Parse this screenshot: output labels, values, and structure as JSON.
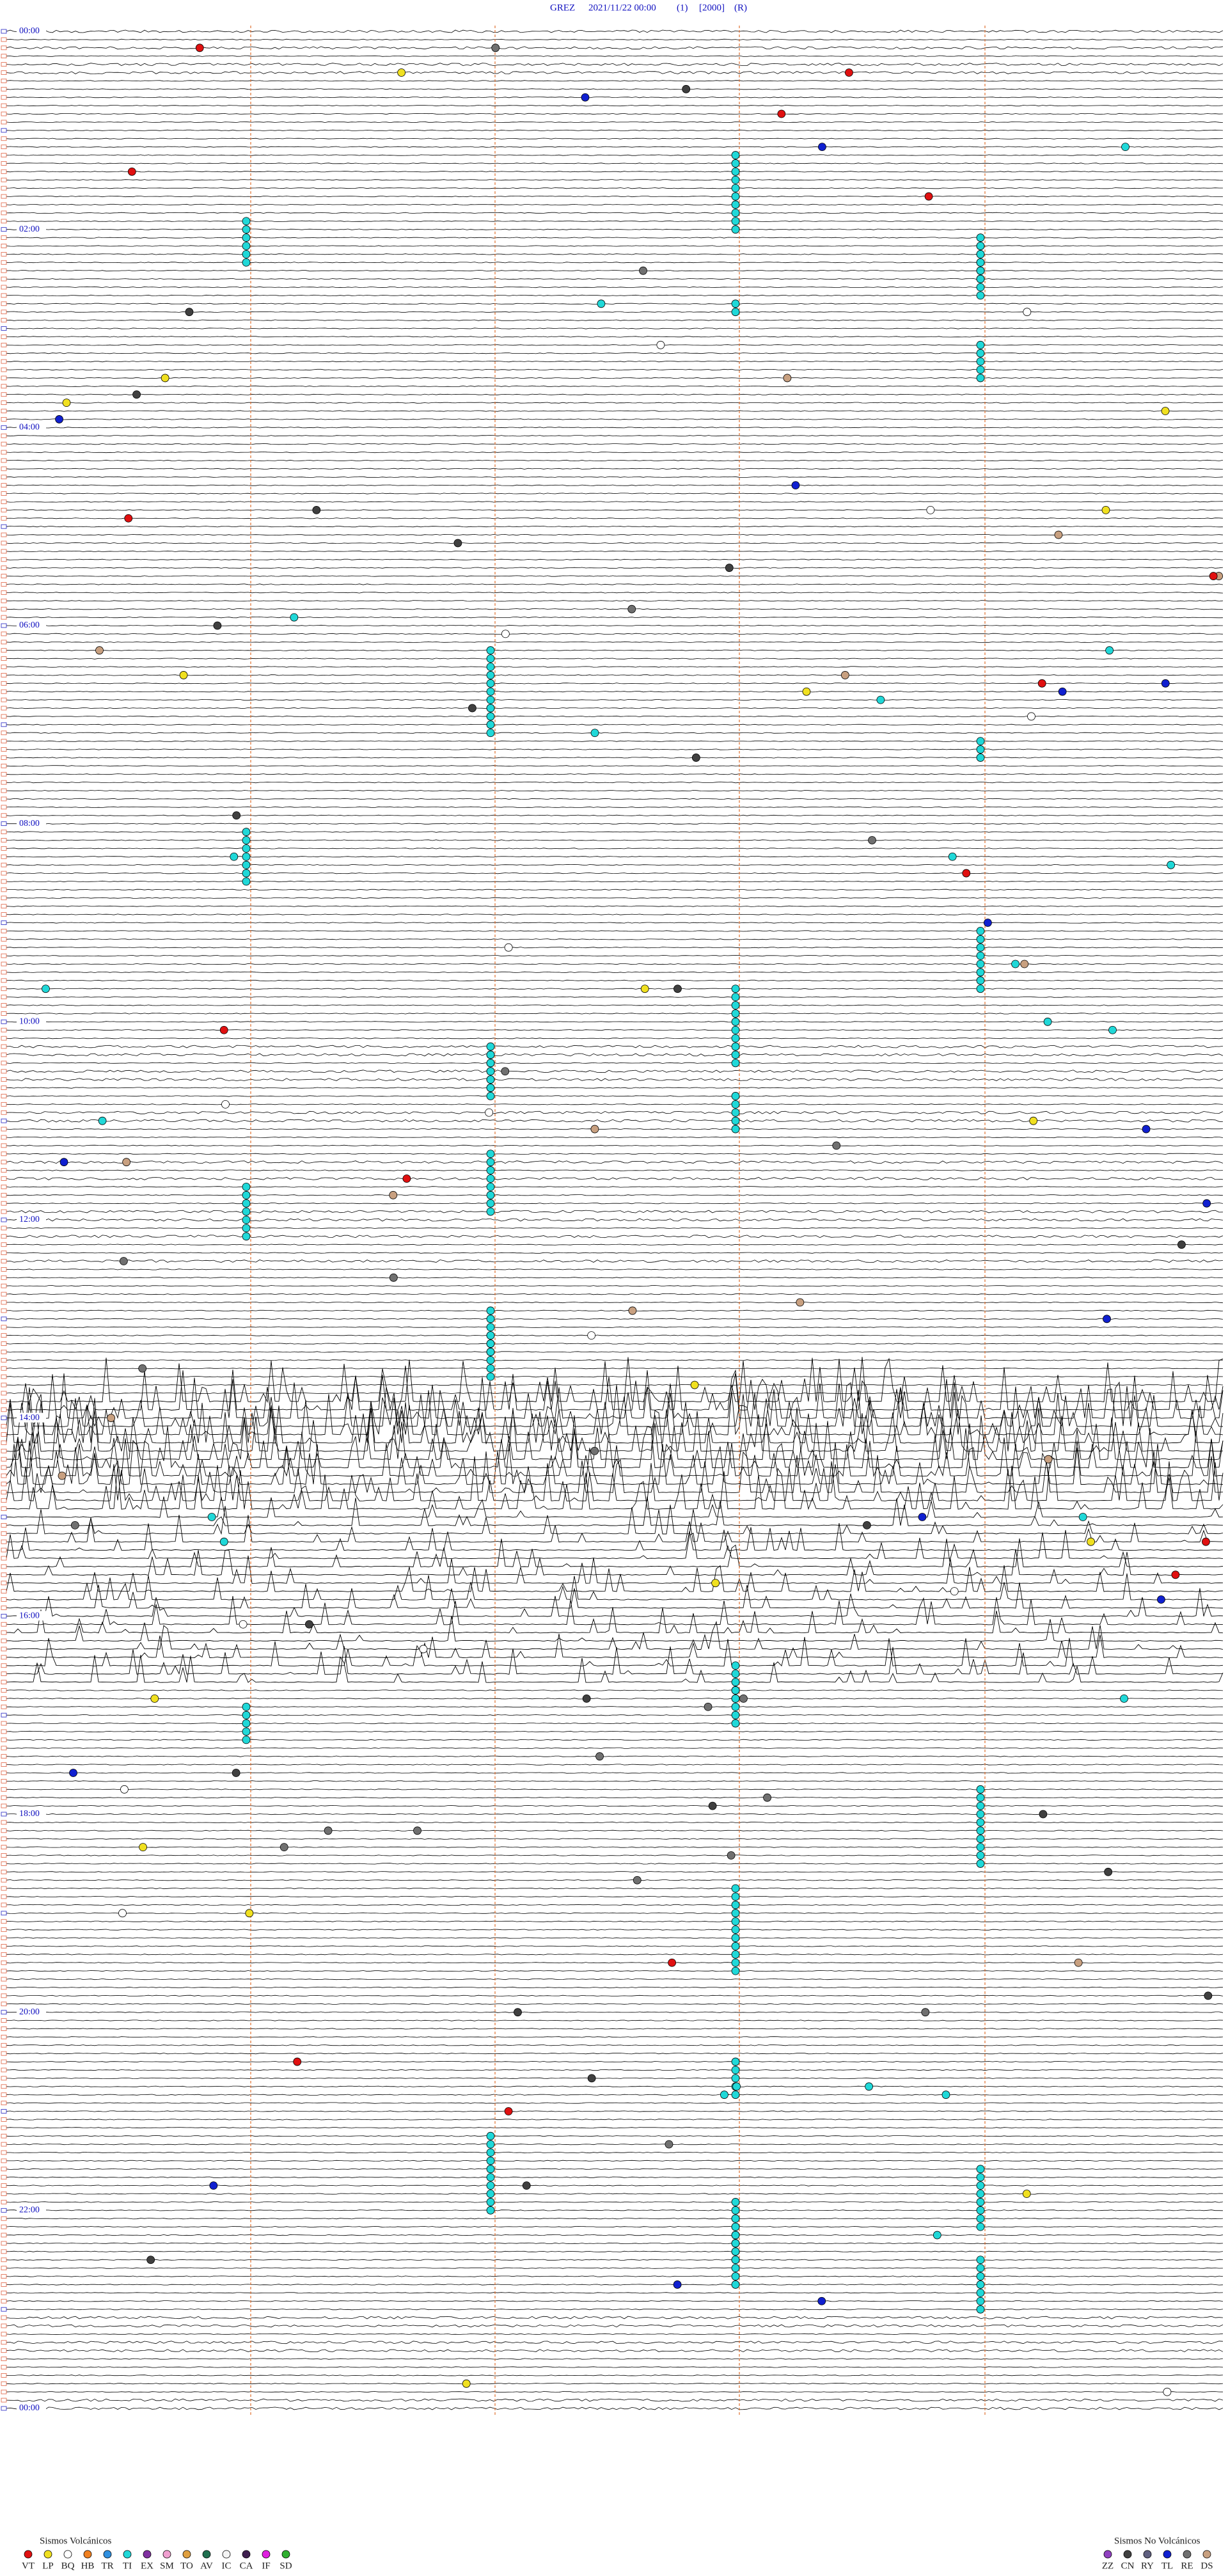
{
  "header": {
    "station": "GREZ",
    "datetime": "2021/11/22 00:00",
    "channel": "(1)",
    "scale": "[2000]",
    "mode": "(R)"
  },
  "hour_labels": [
    "00:00",
    "02:00",
    "04:00",
    "06:00",
    "08:00",
    "10:00",
    "12:00",
    "14:00",
    "16:00",
    "18:00",
    "20:00",
    "22:00",
    "00:00"
  ],
  "legend_volcanic": {
    "title": "Sismos Volcánicos",
    "items": [
      {
        "label": "VT",
        "color": "#e01010"
      },
      {
        "label": "LP",
        "color": "#f0e020"
      },
      {
        "label": "BQ",
        "color": "#ffffff"
      },
      {
        "label": "HB",
        "color": "#f08020"
      },
      {
        "label": "TR",
        "color": "#3090e0"
      },
      {
        "label": "TI",
        "color": "#20d8d8"
      },
      {
        "label": "EX",
        "color": "#8030a0"
      },
      {
        "label": "SM",
        "color": "#f0a0d0"
      },
      {
        "label": "TO",
        "color": "#e0a040"
      },
      {
        "label": "AV",
        "color": "#207050"
      },
      {
        "label": "IC",
        "color": "#f4f4f4"
      },
      {
        "label": "CA",
        "color": "#402050"
      },
      {
        "label": "IF",
        "color": "#e020e0"
      },
      {
        "label": "SD",
        "color": "#30b030"
      }
    ]
  },
  "legend_non_volcanic": {
    "title": "Sismos No Volcánicos",
    "items": [
      {
        "label": "ZZ",
        "color": "#9040c0"
      },
      {
        "label": "CN",
        "color": "#404040"
      },
      {
        "label": "RY",
        "color": "#606080"
      },
      {
        "label": "TL",
        "color": "#1020d0"
      },
      {
        "label": "RE",
        "color": "#707070"
      },
      {
        "label": "DS",
        "color": "#c8a080"
      }
    ]
  }
}
